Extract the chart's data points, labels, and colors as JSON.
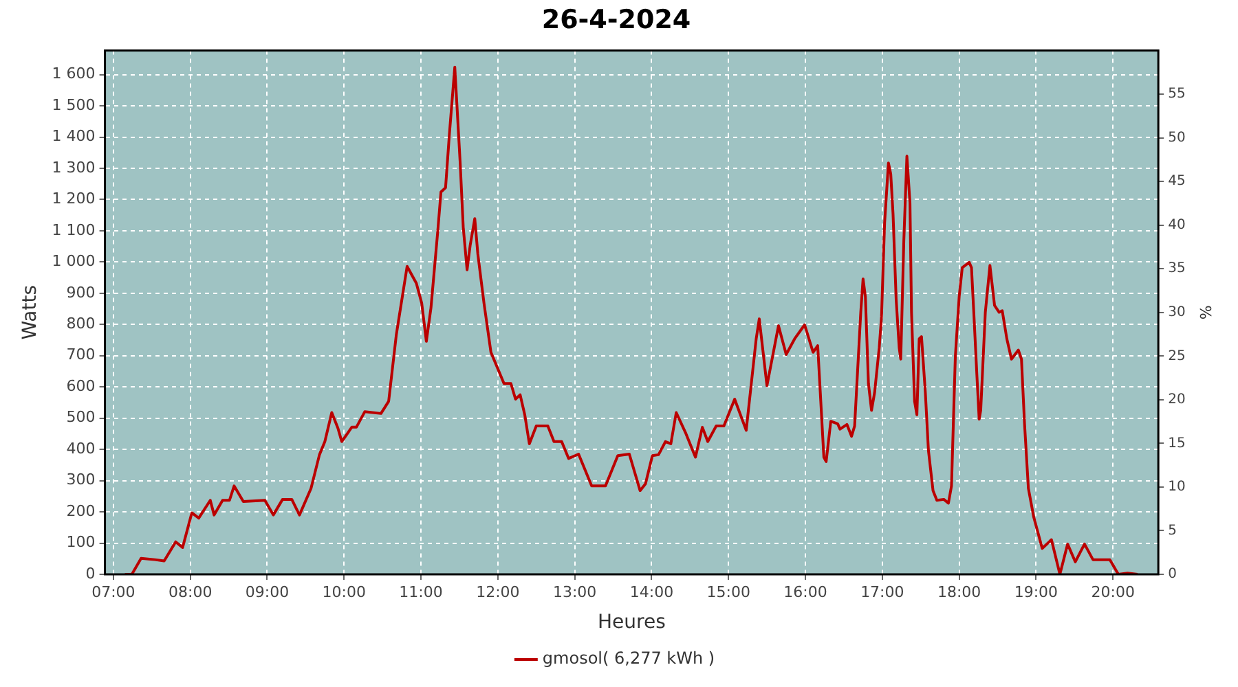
{
  "chart_data": {
    "type": "line",
    "title": "26-4-2024",
    "xlabel": "Heures",
    "ylabel": "Watts",
    "y2label": "%",
    "x": [
      7.15,
      7.24,
      7.36,
      7.54,
      7.66,
      7.81,
      7.9,
      8.02,
      8.11,
      8.26,
      8.31,
      8.42,
      8.51,
      8.57,
      8.69,
      8.97,
      9.08,
      9.2,
      9.32,
      9.42,
      9.57,
      9.68,
      9.75,
      9.84,
      9.92,
      9.97,
      10.1,
      10.16,
      10.27,
      10.48,
      10.58,
      10.68,
      10.82,
      10.94,
      11.01,
      11.07,
      11.13,
      11.22,
      11.26,
      11.32,
      11.37,
      11.44,
      11.51,
      11.55,
      11.6,
      11.64,
      11.7,
      11.74,
      11.82,
      11.91,
      12.08,
      12.17,
      12.23,
      12.29,
      12.35,
      12.41,
      12.5,
      12.65,
      12.73,
      12.83,
      12.92,
      13.05,
      13.22,
      13.4,
      13.56,
      13.71,
      13.85,
      13.92,
      14.01,
      14.09,
      14.18,
      14.25,
      14.32,
      14.44,
      14.57,
      14.66,
      14.73,
      14.84,
      14.94,
      15.08,
      15.23,
      15.36,
      15.4,
      15.5,
      15.65,
      15.75,
      15.86,
      15.99,
      16.1,
      16.16,
      16.2,
      16.24,
      16.27,
      16.33,
      16.42,
      16.45,
      16.54,
      16.6,
      16.64,
      16.72,
      16.75,
      16.78,
      16.82,
      16.86,
      16.9,
      16.96,
      16.99,
      17.03,
      17.08,
      17.11,
      17.14,
      17.18,
      17.22,
      17.24,
      17.28,
      17.32,
      17.36,
      17.38,
      17.42,
      17.45,
      17.48,
      17.51,
      17.56,
      17.6,
      17.66,
      17.71,
      17.8,
      17.86,
      17.9,
      17.95,
      18,
      18.04,
      18.13,
      18.16,
      18.19,
      18.23,
      18.26,
      18.28,
      18.34,
      18.4,
      18.46,
      18.52,
      18.56,
      18.62,
      18.68,
      18.77,
      18.81,
      18.85,
      18.9,
      18.97,
      19.08,
      19.2,
      19.31,
      19.41,
      19.51,
      19.63,
      19.74,
      19.96,
      20.07,
      20.19,
      20.32
    ],
    "series": [
      {
        "name": "gmosol( 6,277 kWh )",
        "color": "#bb0000",
        "values": [
          0,
          0,
          51,
          47,
          43,
          104,
          86,
          197,
          180,
          237,
          190,
          237,
          237,
          283,
          233,
          237,
          190,
          240,
          240,
          190,
          275,
          383,
          425,
          518,
          468,
          425,
          471,
          471,
          521,
          515,
          554,
          768,
          986,
          932,
          868,
          746,
          853,
          1103,
          1224,
          1238,
          1410,
          1624,
          1318,
          1111,
          975,
          1053,
          1139,
          1025,
          868,
          711,
          611,
          611,
          561,
          575,
          511,
          418,
          475,
          475,
          425,
          425,
          371,
          385,
          283,
          283,
          380,
          385,
          268,
          290,
          380,
          383,
          425,
          418,
          518,
          454,
          375,
          471,
          425,
          475,
          475,
          561,
          461,
          754,
          818,
          604,
          796,
          704,
          754,
          799,
          711,
          732,
          554,
          375,
          361,
          490,
          482,
          465,
          480,
          442,
          475,
          839,
          946,
          889,
          611,
          525,
          582,
          725,
          825,
          1125,
          1317,
          1282,
          1153,
          882,
          725,
          689,
          1068,
          1339,
          1189,
          839,
          554,
          511,
          754,
          761,
          582,
          397,
          268,
          237,
          240,
          228,
          283,
          697,
          889,
          982,
          999,
          982,
          839,
          639,
          497,
          525,
          839,
          989,
          861,
          839,
          844,
          754,
          689,
          718,
          689,
          482,
          275,
          183,
          83,
          111,
          0,
          97,
          40,
          97,
          47,
          47,
          0,
          4,
          0
        ]
      }
    ],
    "xlim": [
      6.89,
      20.59
    ],
    "xticks": [
      {
        "value": 7,
        "label": "07:00"
      },
      {
        "value": 8,
        "label": "08:00"
      },
      {
        "value": 9,
        "label": "09:00"
      },
      {
        "value": 10,
        "label": "10:00"
      },
      {
        "value": 11,
        "label": "11:00"
      },
      {
        "value": 12,
        "label": "12:00"
      },
      {
        "value": 13,
        "label": "13:00"
      },
      {
        "value": 14,
        "label": "14:00"
      },
      {
        "value": 15,
        "label": "15:00"
      },
      {
        "value": 16,
        "label": "16:00"
      },
      {
        "value": 17,
        "label": "17:00"
      },
      {
        "value": 18,
        "label": "18:00"
      },
      {
        "value": 19,
        "label": "19:00"
      },
      {
        "value": 20,
        "label": "20:00"
      }
    ],
    "ylim": [
      0,
      1677
    ],
    "yticks": [
      0,
      100,
      200,
      300,
      400,
      500,
      600,
      700,
      800,
      900,
      {
        "value": 1000,
        "label": "1 000"
      },
      {
        "value": 1100,
        "label": "1 100"
      },
      {
        "value": 1200,
        "label": "1 200"
      },
      {
        "value": 1300,
        "label": "1 300"
      },
      {
        "value": 1400,
        "label": "1 400"
      },
      {
        "value": 1500,
        "label": "1 500"
      },
      {
        "value": 1600,
        "label": "1 600"
      }
    ],
    "y2lim": [
      0,
      60
    ],
    "y2ticks": [
      0,
      5,
      10,
      15,
      20,
      25,
      30,
      35,
      40,
      45,
      50,
      55
    ],
    "grid": true,
    "legend": "bottom",
    "marker": "none",
    "line_style": "solid"
  }
}
